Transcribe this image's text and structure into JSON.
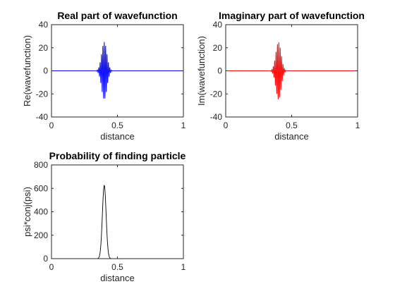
{
  "figure": {
    "background": "#ffffff"
  },
  "chart_data": [
    {
      "type": "line",
      "title": "Real part of wavefunction",
      "xlabel": "distance",
      "ylabel": "Re(wavefunction)",
      "xlim": [
        0,
        1
      ],
      "ylim": [
        -40,
        40
      ],
      "xticks": [
        0,
        0.5,
        1
      ],
      "xtick_labels": [
        "0",
        "0.5",
        "1"
      ],
      "yticks": [
        -40,
        -20,
        0,
        20,
        40
      ],
      "ytick_labels": [
        "-40",
        "-20",
        "0",
        "20",
        "40"
      ],
      "grid": false,
      "series": [
        {
          "color": "#0000ff",
          "component": "real",
          "wavepacket": {
            "center": 0.4,
            "width": 0.02,
            "amplitude": 25,
            "wavenumber": 600,
            "x_start": 0,
            "x_end": 1,
            "samples": 1600
          }
        }
      ]
    },
    {
      "type": "line",
      "title": "Imaginary part of wavefunction",
      "xlabel": "distance",
      "ylabel": "Im(wavefunction)",
      "xlim": [
        0,
        1
      ],
      "ylim": [
        -40,
        40
      ],
      "xticks": [
        0,
        0.5,
        1
      ],
      "xtick_labels": [
        "0",
        "0.5",
        "1"
      ],
      "yticks": [
        -40,
        -20,
        0,
        20,
        40
      ],
      "ytick_labels": [
        "-40",
        "-20",
        "0",
        "20",
        "40"
      ],
      "grid": false,
      "series": [
        {
          "color": "#ff0000",
          "component": "imaginary",
          "wavepacket": {
            "center": 0.4,
            "width": 0.02,
            "amplitude": 25,
            "wavenumber": 600,
            "x_start": 0,
            "x_end": 1,
            "samples": 1600
          }
        }
      ]
    },
    {
      "type": "line",
      "title": "Probability of finding particle",
      "xlabel": "distance",
      "ylabel": "psi*conj(psi)",
      "xlim": [
        0,
        1
      ],
      "ylim": [
        0,
        800
      ],
      "xticks": [
        0,
        0.5,
        1
      ],
      "xtick_labels": [
        "0",
        "0.5",
        "1"
      ],
      "yticks": [
        0,
        200,
        400,
        600,
        800
      ],
      "ytick_labels": [
        "0",
        "200",
        "400",
        "600",
        "800"
      ],
      "grid": false,
      "series": [
        {
          "color": "#000000",
          "component": "probability",
          "wavepacket": {
            "center": 0.4,
            "width": 0.02,
            "amplitude": 25,
            "wavenumber": 600,
            "x_start": 0,
            "x_end": 1,
            "samples": 1600
          }
        }
      ]
    }
  ]
}
